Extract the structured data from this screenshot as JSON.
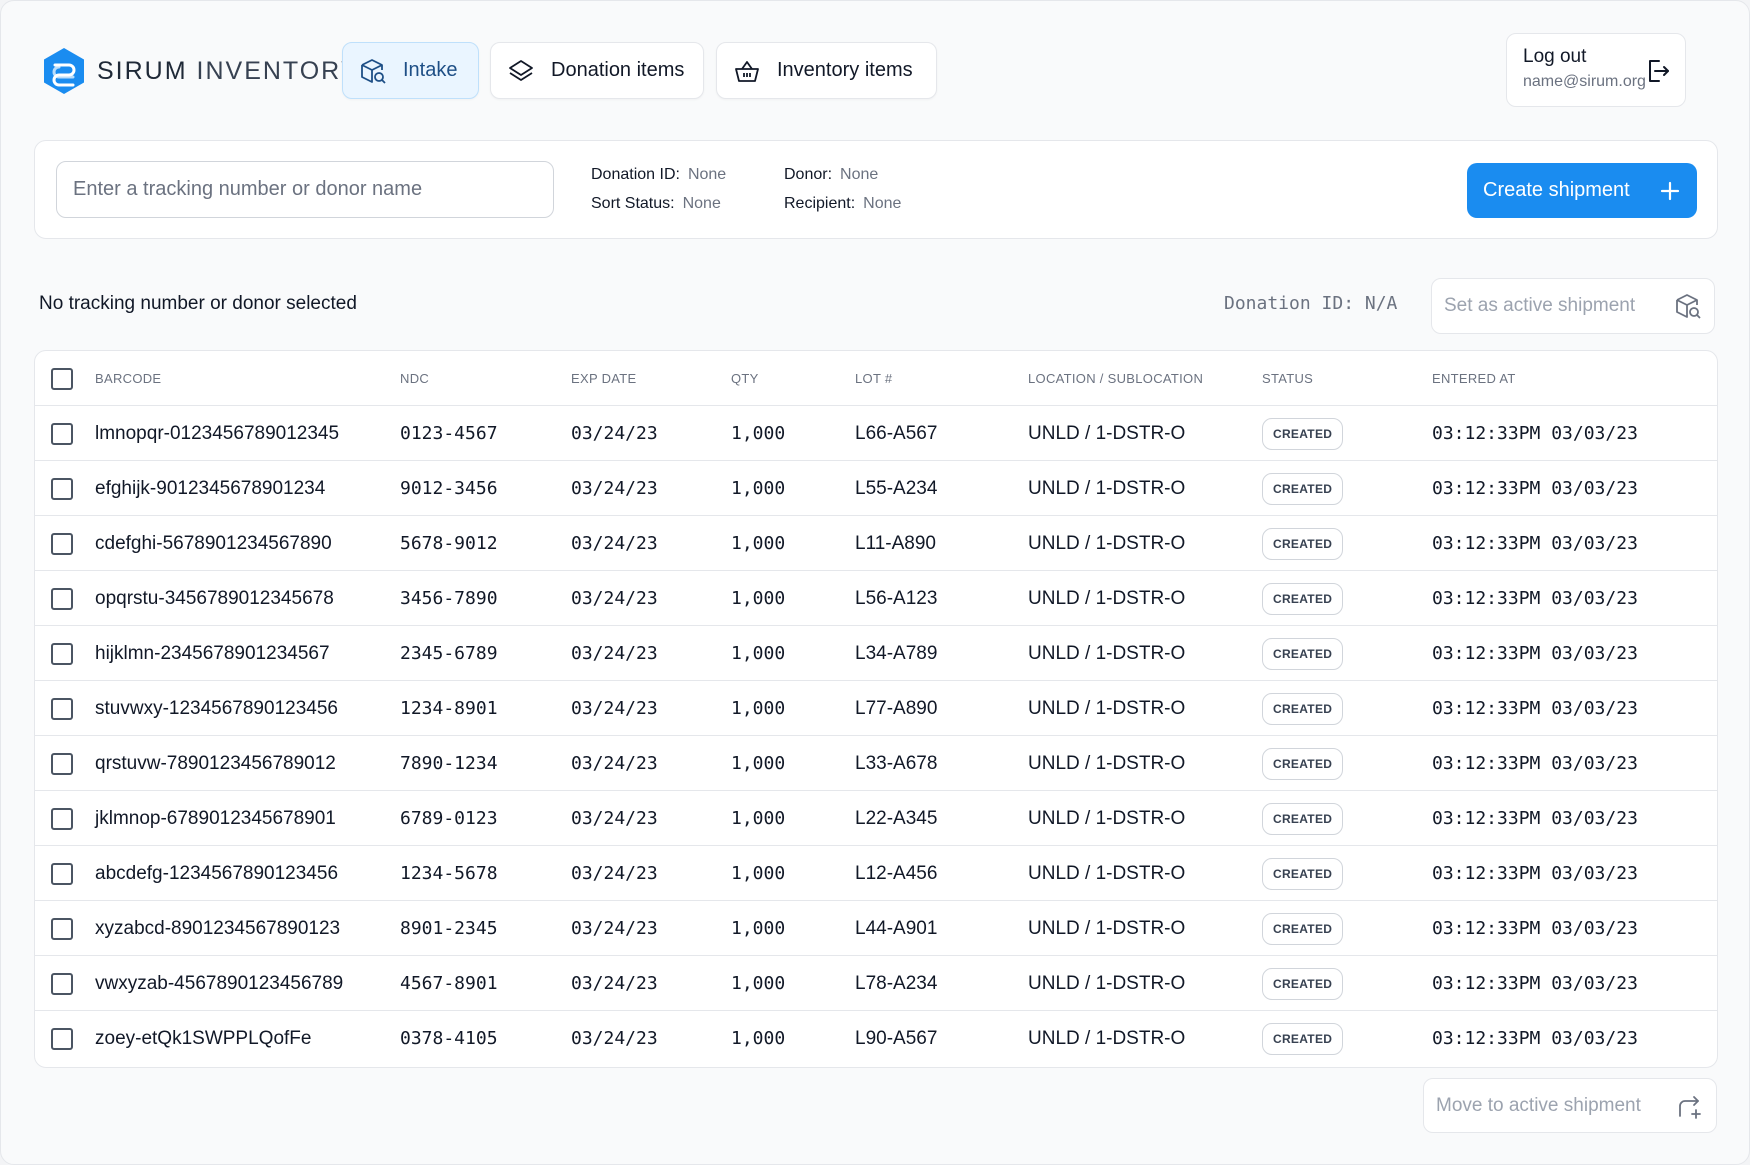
{
  "brand": {
    "name_bold": "SIRUM",
    "name_light": "INVENTORY",
    "color": "#1a8cf0"
  },
  "nav": [
    {
      "label": "Intake",
      "icon": "box-search-icon",
      "active": true
    },
    {
      "label": "Donation items",
      "icon": "layers-icon",
      "active": false
    },
    {
      "label": "Inventory items",
      "icon": "basket-icon",
      "active": false
    }
  ],
  "account": {
    "logout_label": "Log out",
    "email": "name@sirum.org"
  },
  "search": {
    "placeholder": "Enter a tracking number or donor name",
    "value": ""
  },
  "meta": {
    "donation_id_label": "Donation ID:",
    "donation_id_value": "None",
    "sort_status_label": "Sort Status:",
    "sort_status_value": "None",
    "donor_label": "Donor:",
    "donor_value": "None",
    "recipient_label": "Recipient:",
    "recipient_value": "None"
  },
  "create_label": "Create shipment",
  "selection_status": "No tracking number or donor selected",
  "donation_id_readout": "Donation ID: N/A",
  "set_active_label": "Set as active shipment",
  "move_label": "Move to active shipment",
  "table": {
    "headers": [
      "BARCODE",
      "NDC",
      "EXP DATE",
      "QTY",
      "LOT #",
      "LOCATION / SUBLOCATION",
      "STATUS",
      "ENTERED AT"
    ],
    "rows": [
      {
        "barcode": "lmnopqr-0123456789012345",
        "ndc": "0123-4567",
        "exp": "03/24/23",
        "qty": "1,000",
        "lot": "L66-A567",
        "location": "UNLD / 1-DSTR-O",
        "status": "CREATED",
        "entered": "03:12:33PM 03/03/23"
      },
      {
        "barcode": "efghijk-9012345678901234",
        "ndc": "9012-3456",
        "exp": "03/24/23",
        "qty": "1,000",
        "lot": "L55-A234",
        "location": "UNLD / 1-DSTR-O",
        "status": "CREATED",
        "entered": "03:12:33PM 03/03/23"
      },
      {
        "barcode": "cdefghi-5678901234567890",
        "ndc": "5678-9012",
        "exp": "03/24/23",
        "qty": "1,000",
        "lot": "L11-A890",
        "location": "UNLD / 1-DSTR-O",
        "status": "CREATED",
        "entered": "03:12:33PM 03/03/23"
      },
      {
        "barcode": "opqrstu-3456789012345678",
        "ndc": "3456-7890",
        "exp": "03/24/23",
        "qty": "1,000",
        "lot": "L56-A123",
        "location": "UNLD / 1-DSTR-O",
        "status": "CREATED",
        "entered": "03:12:33PM 03/03/23"
      },
      {
        "barcode": "hijklmn-2345678901234567",
        "ndc": "2345-6789",
        "exp": "03/24/23",
        "qty": "1,000",
        "lot": "L34-A789",
        "location": "UNLD / 1-DSTR-O",
        "status": "CREATED",
        "entered": "03:12:33PM 03/03/23"
      },
      {
        "barcode": "stuvwxy-1234567890123456",
        "ndc": "1234-8901",
        "exp": "03/24/23",
        "qty": "1,000",
        "lot": "L77-A890",
        "location": "UNLD / 1-DSTR-O",
        "status": "CREATED",
        "entered": "03:12:33PM 03/03/23"
      },
      {
        "barcode": "qrstuvw-7890123456789012",
        "ndc": "7890-1234",
        "exp": "03/24/23",
        "qty": "1,000",
        "lot": "L33-A678",
        "location": "UNLD / 1-DSTR-O",
        "status": "CREATED",
        "entered": "03:12:33PM 03/03/23"
      },
      {
        "barcode": "jklmnop-6789012345678901",
        "ndc": "6789-0123",
        "exp": "03/24/23",
        "qty": "1,000",
        "lot": "L22-A345",
        "location": "UNLD / 1-DSTR-O",
        "status": "CREATED",
        "entered": "03:12:33PM 03/03/23"
      },
      {
        "barcode": "abcdefg-1234567890123456",
        "ndc": "1234-5678",
        "exp": "03/24/23",
        "qty": "1,000",
        "lot": "L12-A456",
        "location": "UNLD / 1-DSTR-O",
        "status": "CREATED",
        "entered": "03:12:33PM 03/03/23"
      },
      {
        "barcode": "xyzabcd-8901234567890123",
        "ndc": "8901-2345",
        "exp": "03/24/23",
        "qty": "1,000",
        "lot": "L44-A901",
        "location": "UNLD / 1-DSTR-O",
        "status": "CREATED",
        "entered": "03:12:33PM 03/03/23"
      },
      {
        "barcode": "vwxyzab-4567890123456789",
        "ndc": "4567-8901",
        "exp": "03/24/23",
        "qty": "1,000",
        "lot": "L78-A234",
        "location": "UNLD / 1-DSTR-O",
        "status": "CREATED",
        "entered": "03:12:33PM 03/03/23"
      },
      {
        "barcode": "zoey-etQk1SWPPLQofFe",
        "ndc": "0378-4105",
        "exp": "03/24/23",
        "qty": "1,000",
        "lot": "L90-A567",
        "location": "UNLD / 1-DSTR-O",
        "status": "CREATED",
        "entered": "03:12:33PM 03/03/23"
      }
    ]
  }
}
